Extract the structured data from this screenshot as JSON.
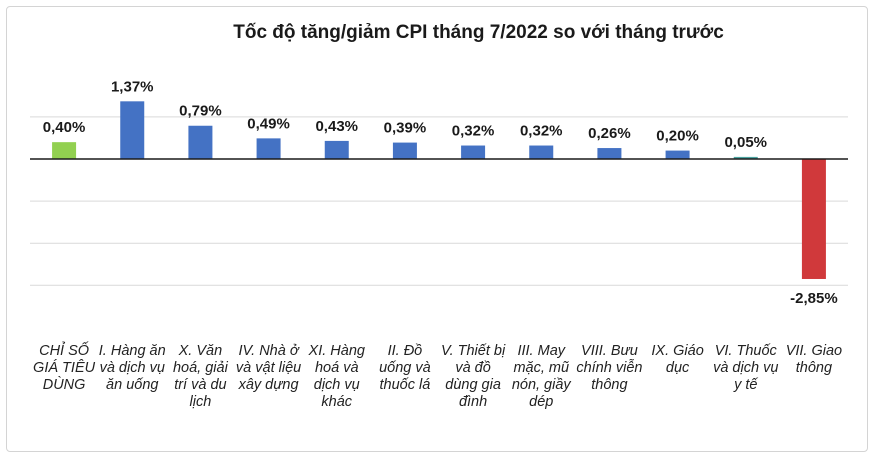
{
  "chart_data": {
    "type": "bar",
    "title": "Tốc độ tăng/giảm CPI tháng 7/2022 so với tháng trước",
    "xlabel": "",
    "ylabel": "",
    "unit": "%",
    "ylim": [
      -3.6,
      1.8
    ],
    "grid": true,
    "legend": "none",
    "categories": [
      "CHỈ SỐ GIÁ TIÊU DÙNG",
      "I. Hàng ăn và dịch vụ ăn uống",
      "X. Văn hoá, giải trí và du lịch",
      "IV. Nhà ở và vật liệu xây dựng",
      "XI. Hàng hoá và dịch vụ khác",
      "II. Đồ uống và thuốc lá",
      "V. Thiết bị và đồ dùng gia đình",
      "III. May mặc, mũ nón, giầy dép",
      "VIII. Bưu chính viễn thông",
      "IX. Giáo dục",
      "VI. Thuốc và dịch vụ y tế",
      "VII. Giao thông"
    ],
    "values": [
      0.4,
      1.37,
      0.79,
      0.49,
      0.43,
      0.39,
      0.32,
      0.32,
      0.26,
      0.2,
      0.05,
      -2.85
    ],
    "data_labels": [
      "0,40%",
      "1,37%",
      "0,79%",
      "0,49%",
      "0,43%",
      "0,39%",
      "0,32%",
      "0,32%",
      "0,26%",
      "0,20%",
      "0,05%",
      "-2,85%"
    ],
    "colors": [
      "#92d050",
      "#4472c4",
      "#4472c4",
      "#4472c4",
      "#4472c4",
      "#4472c4",
      "#4472c4",
      "#4472c4",
      "#4472c4",
      "#4472c4",
      "#4ba3a0",
      "#d0393b"
    ]
  }
}
